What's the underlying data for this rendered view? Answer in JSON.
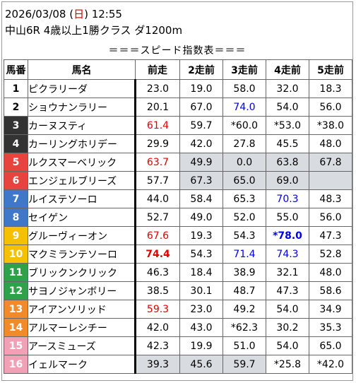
{
  "header": {
    "date_prefix": "2026/03/08 (",
    "weekday": "日",
    "date_suffix": ") 12:55",
    "race": "中山6R 4歳以上1勝クラス ダ1200m",
    "table_title": "＝＝＝スピード指数表＝＝＝"
  },
  "columns": [
    "馬番",
    "馬名",
    "前走",
    "2走前",
    "3走前",
    "4走前",
    "5走前"
  ],
  "colors": {
    "highlight_bg": "#d8dbe0",
    "red_text": "#e00000",
    "blue_text": "#0000e0"
  },
  "rows": [
    {
      "num": "1",
      "name": "ピクラリーダ",
      "vals": [
        {
          "t": "23.0"
        },
        {
          "t": "19.0"
        },
        {
          "t": "58.0"
        },
        {
          "t": "32.0"
        },
        {
          "t": "18.3"
        }
      ]
    },
    {
      "num": "2",
      "name": "ショウナンラリー",
      "vals": [
        {
          "t": "20.1"
        },
        {
          "t": "67.0"
        },
        {
          "t": "74.0",
          "c": "blue"
        },
        {
          "t": "54.0"
        },
        {
          "t": "56.0"
        }
      ]
    },
    {
      "num": "3",
      "name": "カーヌスティ",
      "vals": [
        {
          "t": "61.4",
          "c": "red"
        },
        {
          "t": "59.7"
        },
        {
          "t": "*60.0"
        },
        {
          "t": "*53.0"
        },
        {
          "t": "*38.0"
        }
      ]
    },
    {
      "num": "4",
      "name": "カーリングホリデー",
      "vals": [
        {
          "t": "29.9"
        },
        {
          "t": "42.0"
        },
        {
          "t": "27.8"
        },
        {
          "t": "45.5"
        },
        {
          "t": "48.0"
        }
      ]
    },
    {
      "num": "5",
      "name": "ルクスマーベリック",
      "vals": [
        {
          "t": "63.7",
          "c": "red"
        },
        {
          "t": "49.9",
          "h": true
        },
        {
          "t": "0.0",
          "h": true
        },
        {
          "t": "63.8",
          "h": true
        },
        {
          "t": "67.8",
          "h": true
        }
      ]
    },
    {
      "num": "6",
      "name": "エンジェルブリーズ",
      "vals": [
        {
          "t": "57.7"
        },
        {
          "t": "67.3",
          "h": true
        },
        {
          "t": "65.0",
          "h": true
        },
        {
          "t": "69.0",
          "h": true
        },
        {
          "t": "",
          "h": true
        }
      ]
    },
    {
      "num": "7",
      "name": "ルイステソーロ",
      "vals": [
        {
          "t": "44.0"
        },
        {
          "t": "58.4"
        },
        {
          "t": "65.3"
        },
        {
          "t": "70.3",
          "c": "blue"
        },
        {
          "t": "48.3"
        }
      ]
    },
    {
      "num": "8",
      "name": "セイゲン",
      "vals": [
        {
          "t": "52.7"
        },
        {
          "t": "49.0"
        },
        {
          "t": "52.0"
        },
        {
          "t": "55.0"
        },
        {
          "t": "56.0"
        }
      ]
    },
    {
      "num": "9",
      "name": "グルーヴィーオン",
      "vals": [
        {
          "t": "67.6",
          "c": "red"
        },
        {
          "t": "19.3"
        },
        {
          "t": "54.3"
        },
        {
          "t": "*78.0",
          "c": "blue",
          "b": true
        },
        {
          "t": "47.3"
        }
      ]
    },
    {
      "num": "10",
      "name": "マクミランテソーロ",
      "vals": [
        {
          "t": "74.4",
          "c": "red",
          "b": true
        },
        {
          "t": "54.3"
        },
        {
          "t": "71.4",
          "c": "blue"
        },
        {
          "t": "74.3",
          "c": "blue"
        },
        {
          "t": "52.8"
        }
      ]
    },
    {
      "num": "11",
      "name": "ブリックンクリック",
      "vals": [
        {
          "t": "46.3"
        },
        {
          "t": "18.4"
        },
        {
          "t": "38.9"
        },
        {
          "t": "32.1"
        },
        {
          "t": "48.0"
        }
      ]
    },
    {
      "num": "12",
      "name": "サヨノジャンボリー",
      "vals": [
        {
          "t": "38.5"
        },
        {
          "t": "30.1"
        },
        {
          "t": "48.7"
        },
        {
          "t": "47.3"
        },
        {
          "t": "58.6"
        }
      ]
    },
    {
      "num": "13",
      "name": "アイアンソリッド",
      "vals": [
        {
          "t": "59.3",
          "c": "red"
        },
        {
          "t": "23.0"
        },
        {
          "t": "49.2"
        },
        {
          "t": "54.0"
        },
        {
          "t": "34.9"
        }
      ]
    },
    {
      "num": "14",
      "name": "アルマーレシチー",
      "vals": [
        {
          "t": "42.0"
        },
        {
          "t": "43.0"
        },
        {
          "t": "*62.3"
        },
        {
          "t": "30.2"
        },
        {
          "t": "35.3"
        }
      ]
    },
    {
      "num": "15",
      "name": "アースミューズ",
      "vals": [
        {
          "t": "42.3"
        },
        {
          "t": "19.9"
        },
        {
          "t": "51.0"
        },
        {
          "t": "54.0"
        },
        {
          "t": "65.0"
        }
      ]
    },
    {
      "num": "16",
      "name": "イェルマーク",
      "vals": [
        {
          "t": "39.3",
          "h": true
        },
        {
          "t": "45.6",
          "h": true
        },
        {
          "t": "59.7",
          "h": true
        },
        {
          "t": "*25.8"
        },
        {
          "t": "*42.0"
        }
      ]
    }
  ]
}
